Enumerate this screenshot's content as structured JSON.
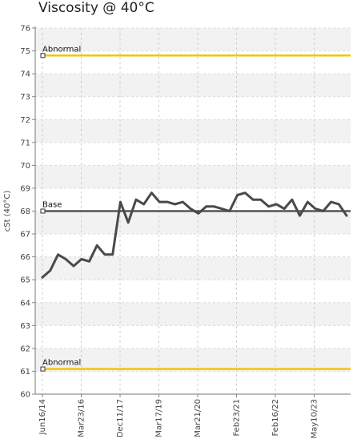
{
  "chart_data": {
    "type": "line",
    "title": "Viscosity @ 40°C",
    "ylabel": "cSt (40°C)",
    "xlabel": "",
    "ylim": [
      60,
      76
    ],
    "yticks": [
      60,
      61,
      62,
      63,
      64,
      65,
      66,
      67,
      68,
      69,
      70,
      71,
      72,
      73,
      74,
      75,
      76
    ],
    "grid": true,
    "xtick_labels": [
      "Jun16/14",
      "Mar23/16",
      "Dec11/17",
      "Mar17/19",
      "Mar21/20",
      "Feb23/21",
      "Feb16/22",
      "May10/23"
    ],
    "reference_lines": [
      {
        "label": "Abnormal",
        "value": 74.8,
        "color": "#f5c400"
      },
      {
        "label": "Base",
        "value": 68.0,
        "color": "#555555"
      },
      {
        "label": "Abnormal",
        "value": 61.1,
        "color": "#f5c400"
      }
    ],
    "series": [
      {
        "color": "#4a4a4a",
        "values": [
          65.1,
          65.4,
          66.1,
          65.9,
          65.6,
          65.9,
          65.8,
          66.5,
          66.1,
          66.1,
          68.4,
          67.5,
          68.5,
          68.3,
          68.8,
          68.4,
          68.4,
          68.3,
          68.4,
          68.1,
          67.9,
          68.2,
          68.2,
          68.1,
          68.0,
          68.7,
          68.8,
          68.5,
          68.5,
          68.2,
          68.3,
          68.1,
          68.5,
          67.8,
          68.4,
          68.1,
          68.0,
          68.4,
          68.3,
          67.8
        ]
      }
    ]
  }
}
